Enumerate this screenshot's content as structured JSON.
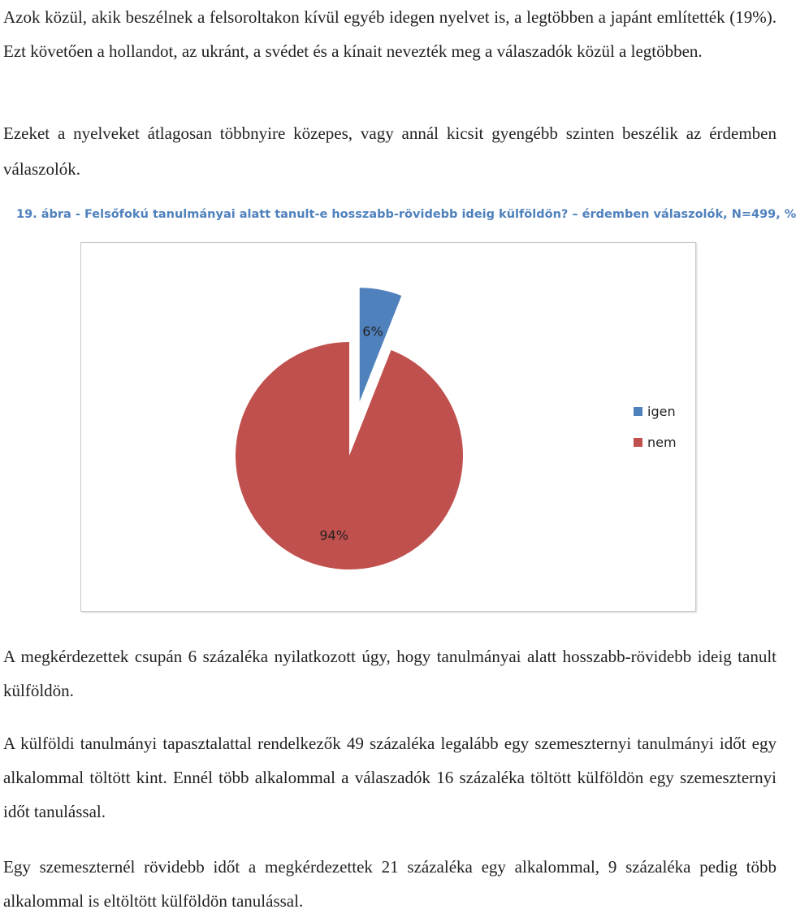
{
  "paragraphs": {
    "p1": "Azok közül, akik beszélnek a felsoroltakon kívül egyéb idegen nyelvet is, a legtöbben a japánt említették (19%). Ezt követően a hollandot, az ukránt, a svédet és a kínait nevezték meg a válaszadók közül a legtöbben.",
    "p2": "Ezeket a nyelveket átlagosan többnyire közepes, vagy annál kicsit gyengébb szinten beszélik az érdemben válaszolók.",
    "p3": "A megkérdezettek csupán 6 százaléka nyilatkozott úgy, hogy tanulmányai alatt hosszabb-rövidebb ideig tanult külföldön.",
    "p4": "A külföldi tanulmányi tapasztalattal rendelkezők 49 százaléka legalább egy szemeszternyi tanulmányi időt egy alkalommal töltött kint. Ennél több alkalommal a válaszadók 16 százaléka töltött külföldön egy szemeszternyi időt tanulással.",
    "p5": "Egy szemeszternél rövidebb időt a megkérdezettek 21 százaléka egy alkalommal, 9 százaléka pedig több alkalommal is eltöltött külföldön tanulással."
  },
  "figure": {
    "caption": "19. ábra - Felsőfokú tanulmányai alatt tanult-e hosszabb-rövidebb ideig külföldön? – érdemben válaszolók, N=499, %"
  },
  "chart_data": {
    "type": "pie",
    "title": "",
    "categories": [
      "igen",
      "nem"
    ],
    "values": [
      6,
      94
    ],
    "labels": [
      "6%",
      "94%"
    ],
    "colors": [
      "#4f81bd",
      "#c0504d"
    ],
    "exploded": true,
    "legend": "right"
  }
}
